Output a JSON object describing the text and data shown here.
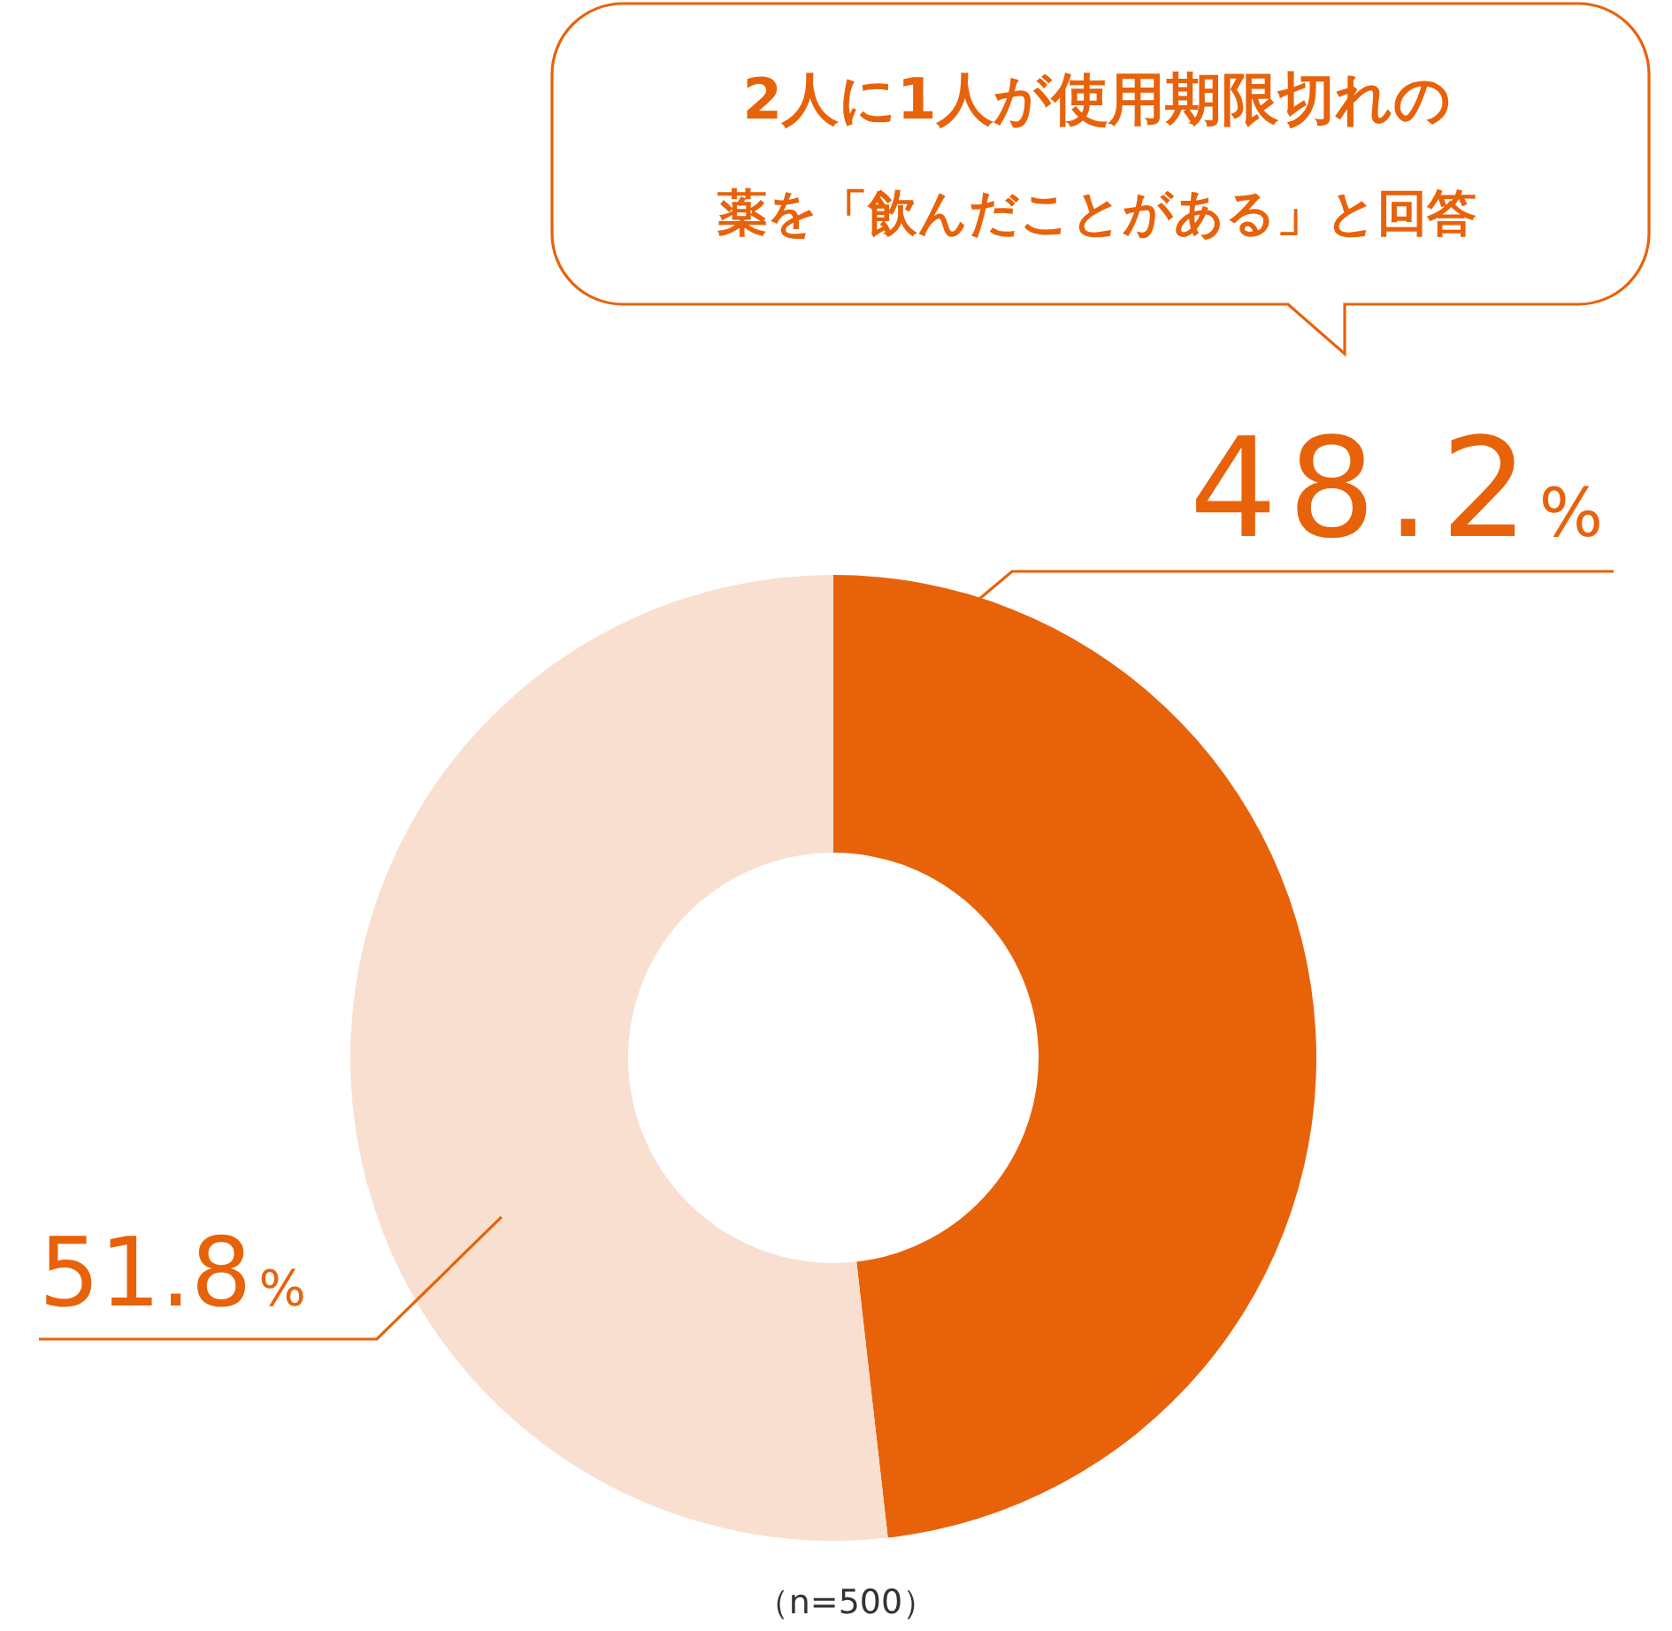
{
  "chart_data": {
    "type": "donut",
    "title": "2人に1人が使用期限切れの",
    "subtitle": "薬を「飲んだことがある」と回答",
    "categories": [
      null,
      null
    ],
    "values": [
      48.2,
      51.8
    ],
    "colors": [
      "#e8620a",
      "#f9dfd0"
    ],
    "value_labels": [
      "48.2%",
      "51.8%"
    ],
    "annotations": [
      "（n=500）"
    ]
  }
}
